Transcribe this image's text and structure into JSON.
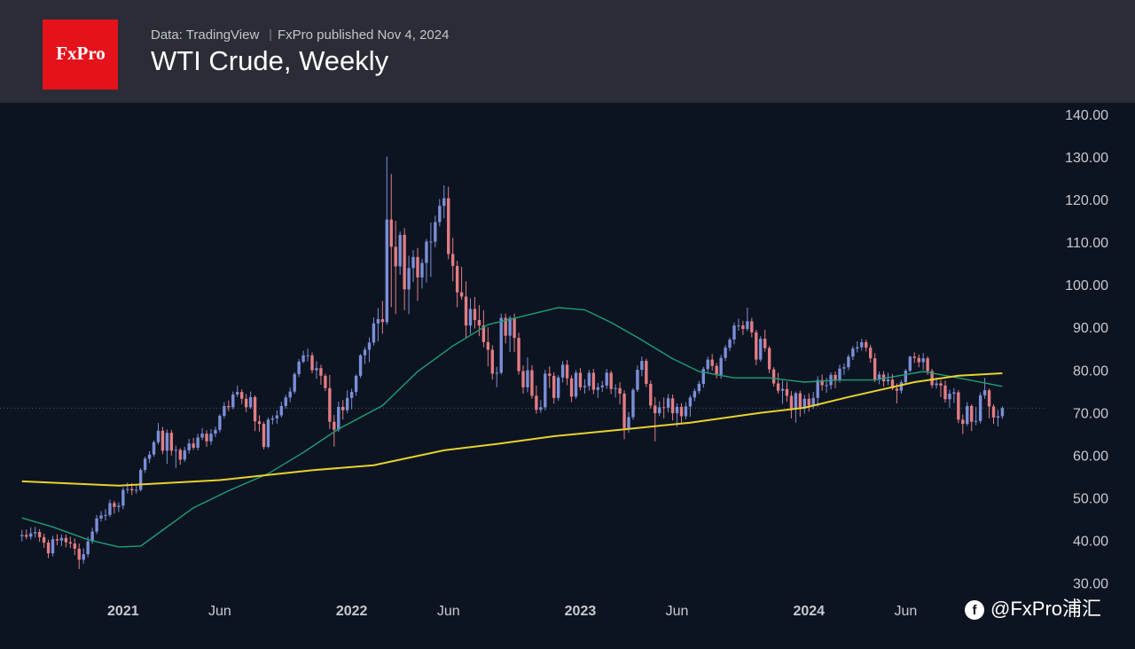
{
  "chart_data": {
    "type": "candlestick",
    "logo": "FxPro",
    "source": "Data: TradingView",
    "published": "FxPro published Nov 4, 2024",
    "title": "WTI Crude, Weekly",
    "watermark": "@FxPro浦汇",
    "up_color": "#7b8fd8",
    "down_color": "#e27d83",
    "price_line": true,
    "xlim": [
      -5,
      233
    ],
    "ylim": [
      26.7,
      143.1
    ],
    "xticks": [
      {
        "value": 23,
        "label": "2021"
      },
      {
        "value": 45,
        "label": "Jun"
      },
      {
        "value": 75,
        "label": "2022"
      },
      {
        "value": 97,
        "label": "Jun"
      },
      {
        "value": 127,
        "label": "2023"
      },
      {
        "value": 149,
        "label": "Jun"
      },
      {
        "value": 179,
        "label": "2024"
      },
      {
        "value": 201,
        "label": "Jun"
      }
    ],
    "yticks": [
      {
        "value": 30,
        "label": "30.00"
      },
      {
        "value": 40,
        "label": "40.00"
      },
      {
        "value": 50,
        "label": "50.00"
      },
      {
        "value": 60,
        "label": "60.00"
      },
      {
        "value": 70,
        "label": "70.00"
      },
      {
        "value": 80,
        "label": "80.00"
      },
      {
        "value": 90,
        "label": "90.00"
      },
      {
        "value": 100,
        "label": "100.00"
      },
      {
        "value": 110,
        "label": "110.00"
      },
      {
        "value": 120,
        "label": "120.00"
      },
      {
        "value": 130,
        "label": "130.00"
      },
      {
        "value": 140,
        "label": "140.00"
      }
    ],
    "open": [
      41.3,
      41.6,
      41.2,
      42.0,
      42.3,
      41.1,
      39.8,
      37.3,
      40.6,
      40.3,
      40.9,
      39.9,
      39.6,
      38.4,
      35.8,
      37.1,
      40.1,
      42.4,
      45.5,
      46.2,
      46.3,
      49.1,
      48.2,
      48.5,
      52.2,
      52.4,
      52.1,
      52.2,
      56.9,
      59.5,
      60.5,
      63.4,
      66.1,
      61.4,
      65.6,
      61.4,
      61.6,
      59.3,
      61.5,
      63.1,
      62.1,
      64.5,
      65.4,
      63.6,
      65.4,
      66.3,
      69.6,
      71.9,
      71.6,
      74.6,
      75.2,
      73.6,
      71.6,
      74.0,
      68.3,
      67.7,
      62.3,
      68.7,
      69.0,
      69.7,
      71.9,
      73.9,
      75.3,
      79.4,
      82.3,
      83.8,
      83.8,
      80.3,
      80.8,
      79.0,
      76.1,
      68.2,
      66.3,
      71.7,
      70.9,
      73.8,
      75.2,
      79.0,
      83.8,
      85.1,
      86.8,
      91.3,
      92.3,
      91.6,
      115.7,
      109.3,
      104.7,
      112.1,
      99.3,
      104.3,
      106.9,
      102.1,
      105.5,
      110.5,
      110.5,
      115.1,
      118.9,
      120.7,
      107.6,
      104.8,
      98.6,
      97.6,
      90.8,
      94.7,
      92.1,
      90.8,
      86.9,
      85.1,
      79.5,
      79.7,
      92.6,
      88.4,
      92.6,
      87.9,
      80.1,
      76.3,
      80.3,
      74.3,
      71.0,
      71.6,
      79.5,
      79.0,
      73.8,
      78.6,
      81.6,
      78.4,
      74.1,
      79.7,
      76.3,
      76.6,
      79.7,
      75.7,
      76.3,
      76.7,
      79.7,
      75.9,
      76.1,
      74.8,
      66.7,
      69.3,
      75.7,
      80.4,
      82.5,
      77.1,
      72.0,
      70.2,
      71.6,
      71.5,
      73.7,
      70.2,
      71.7,
      69.5,
      71.8,
      73.9,
      75.4,
      77.1,
      80.6,
      82.8,
      81.3,
      79.2,
      83.2,
      85.6,
      87.5,
      90.8,
      90.8,
      90.0,
      91.8,
      89.2,
      82.8,
      87.7,
      85.5,
      80.5,
      77.2,
      75.5,
      75.9,
      74.3,
      71.2,
      74.9,
      71.4,
      73.6,
      72.0,
      73.8,
      78.0,
      76.8,
      76.8,
      79.2,
      78.0,
      80.7,
      81.0,
      83.5,
      85.4,
      85.7,
      86.9,
      85.6,
      83.1,
      78.1,
      79.3,
      77.7,
      78.1,
      76.0,
      75.5,
      77.5,
      80.2,
      83.5,
      83.2,
      82.2,
      83.1,
      80.1,
      76.8,
      77.2,
      76.7,
      73.5,
      74.8,
      75.1,
      68.7,
      67.7,
      71.9,
      68.2,
      68.4,
      74.4,
      75.6,
      71.8,
      69.2,
      69.5
    ],
    "high": [
      42.8,
      42.9,
      43.4,
      43.5,
      43.0,
      41.9,
      40.5,
      41.4,
      41.8,
      41.7,
      41.7,
      41.2,
      40.8,
      39.6,
      38.5,
      41.2,
      43.3,
      46.3,
      47.2,
      47.7,
      49.9,
      49.6,
      49.3,
      52.8,
      53.9,
      53.8,
      53.5,
      57.3,
      60.0,
      61.3,
      63.8,
      67.9,
      67.0,
      66.4,
      66.3,
      62.6,
      62.0,
      62.3,
      64.2,
      64.4,
      65.4,
      66.7,
      66.2,
      66.5,
      67.0,
      70.0,
      72.8,
      73.2,
      75.3,
      76.7,
      75.8,
      74.7,
      75.3,
      74.4,
      69.7,
      68.2,
      69.2,
      69.7,
      70.9,
      72.9,
      74.5,
      76.2,
      79.8,
      82.9,
      84.9,
      85.4,
      84.5,
      82.4,
      81.6,
      79.5,
      79.2,
      69.8,
      72.9,
      73.3,
      75.6,
      76.0,
      79.3,
      84.1,
      85.7,
      88.0,
      92.7,
      94.9,
      96.6,
      130.5,
      126.4,
      115.4,
      112.9,
      113.7,
      107.2,
      108.5,
      109.0,
      106.4,
      111.1,
      115.0,
      116.6,
      120.5,
      123.7,
      123.4,
      111.4,
      106.0,
      104.6,
      101.2,
      97.2,
      97.5,
      95.6,
      94.4,
      90.4,
      86.2,
      81.1,
      93.6,
      93.6,
      93.1,
      93.6,
      89.1,
      81.4,
      83.3,
      81.5,
      76.7,
      73.3,
      80.4,
      81.2,
      79.8,
      79.1,
      82.5,
      82.7,
      79.1,
      80.3,
      80.8,
      78.2,
      80.4,
      80.6,
      77.3,
      77.8,
      80.6,
      80.2,
      77.0,
      77.5,
      75.6,
      70.5,
      76.1,
      81.4,
      83.5,
      83.0,
      77.9,
      74.0,
      73.0,
      73.9,
      74.7,
      74.6,
      72.5,
      72.6,
      72.8,
      74.4,
      76.0,
      77.8,
      81.1,
      83.5,
      84.1,
      82.0,
      83.9,
      86.2,
      88.0,
      91.5,
      92.4,
      91.9,
      95.0,
      92.6,
      89.8,
      88.3,
      89.8,
      86.0,
      81.0,
      79.7,
      77.9,
      77.6,
      75.4,
      75.3,
      75.5,
      74.5,
      74.9,
      75.2,
      78.9,
      79.3,
      78.5,
      79.8,
      80.0,
      81.6,
      81.9,
      84.0,
      86.0,
      87.1,
      87.7,
      87.5,
      86.3,
      84.3,
      80.0,
      80.1,
      79.7,
      79.4,
      77.2,
      78.0,
      80.6,
      83.7,
      84.5,
      84.0,
      84.3,
      83.6,
      80.6,
      78.6,
      78.0,
      77.9,
      75.7,
      76.1,
      75.6,
      69.9,
      72.8,
      72.3,
      71.7,
      75.1,
      78.5,
      76.0,
      72.3,
      71.0,
      71.8
    ],
    "low": [
      40.1,
      40.6,
      40.5,
      41.0,
      40.0,
      38.6,
      36.2,
      36.6,
      39.2,
      39.0,
      38.7,
      38.5,
      36.9,
      33.6,
      34.9,
      36.4,
      39.5,
      41.8,
      44.8,
      45.0,
      45.8,
      46.6,
      47.0,
      47.7,
      51.4,
      51.0,
      51.3,
      51.8,
      56.2,
      58.5,
      60.0,
      62.9,
      60.6,
      58.3,
      60.3,
      57.3,
      58.1,
      58.8,
      60.7,
      61.6,
      61.5,
      63.9,
      62.3,
      62.8,
      64.6,
      65.7,
      69.0,
      70.7,
      71.1,
      74.0,
      72.4,
      70.5,
      71.2,
      66.0,
      65.9,
      61.7,
      62.0,
      67.6,
      67.7,
      69.2,
      71.3,
      72.8,
      74.8,
      78.7,
      81.9,
      82.4,
      79.6,
      78.3,
      76.9,
      75.4,
      66.5,
      62.4,
      65.8,
      68.7,
      70.2,
      71.1,
      74.3,
      78.5,
      81.8,
      82.2,
      86.1,
      87.1,
      88.9,
      91.0,
      95.1,
      93.5,
      102.7,
      94.4,
      93.5,
      101.0,
      96.6,
      99.5,
      100.9,
      102.2,
      109.2,
      114.1,
      116.0,
      106.4,
      101.2,
      95.1,
      96.9,
      88.0,
      88.8,
      90.1,
      88.3,
      85.7,
      81.2,
      78.1,
      76.3,
      79.3,
      86.6,
      84.6,
      84.6,
      79.3,
      74.8,
      75.1,
      73.6,
      70.1,
      70.3,
      70.9,
      76.1,
      72.5,
      73.1,
      77.4,
      76.8,
      72.8,
      73.6,
      75.6,
      74.8,
      75.5,
      74.7,
      73.8,
      75.2,
      75.9,
      74.7,
      73.9,
      72.3,
      64.1,
      65.6,
      68.7,
      75.2,
      78.9,
      76.3,
      71.3,
      63.6,
      69.5,
      69.0,
      70.4,
      68.5,
      67.0,
      67.9,
      68.8,
      69.4,
      73.0,
      74.7,
      76.2,
      79.8,
      80.2,
      78.4,
      78.3,
      82.5,
      84.8,
      86.4,
      89.6,
      88.6,
      89.5,
      88.0,
      81.5,
      82.3,
      84.7,
      79.6,
      76.5,
      74.8,
      72.4,
      72.9,
      69.0,
      68.0,
      69.4,
      70.1,
      70.6,
      71.2,
      71.7,
      75.5,
      75.0,
      75.8,
      76.1,
      77.4,
      79.2,
      80.3,
      82.7,
      84.5,
      84.9,
      84.7,
      82.1,
      77.5,
      77.0,
      76.4,
      76.8,
      75.6,
      72.5,
      74.8,
      77.0,
      79.8,
      82.0,
      81.0,
      80.4,
      79.2,
      76.1,
      76.0,
      74.0,
      72.7,
      71.5,
      72.6,
      67.9,
      65.3,
      67.2,
      66.0,
      67.4,
      67.8,
      73.6,
      69.0,
      67.7,
      67.1,
      68.9
    ],
    "close": [
      41.6,
      41.2,
      42.0,
      42.3,
      41.1,
      39.8,
      37.3,
      40.6,
      40.3,
      40.9,
      39.9,
      39.6,
      38.4,
      35.8,
      37.1,
      40.1,
      42.4,
      45.5,
      46.2,
      46.3,
      49.1,
      48.2,
      48.5,
      52.2,
      52.4,
      52.1,
      52.2,
      56.9,
      59.5,
      60.5,
      63.4,
      66.1,
      61.4,
      65.6,
      61.4,
      61.6,
      59.3,
      61.5,
      63.1,
      62.1,
      64.5,
      65.4,
      63.6,
      65.4,
      66.3,
      69.6,
      71.9,
      71.6,
      74.6,
      75.2,
      73.6,
      71.6,
      74.0,
      68.3,
      67.7,
      62.3,
      68.7,
      69.0,
      69.7,
      71.9,
      73.9,
      75.3,
      79.4,
      82.3,
      83.8,
      83.8,
      80.3,
      80.8,
      79.0,
      76.1,
      68.2,
      66.3,
      71.7,
      70.9,
      73.8,
      75.2,
      79.0,
      83.8,
      85.1,
      86.8,
      91.3,
      92.3,
      91.6,
      115.7,
      109.3,
      104.7,
      112.1,
      99.3,
      104.3,
      106.9,
      102.1,
      105.5,
      110.5,
      110.5,
      115.1,
      118.9,
      120.7,
      107.6,
      104.8,
      98.6,
      97.6,
      90.8,
      94.7,
      92.1,
      90.8,
      86.9,
      85.1,
      79.5,
      79.7,
      92.6,
      88.4,
      92.6,
      87.9,
      80.1,
      76.3,
      80.3,
      74.3,
      71.0,
      71.6,
      79.5,
      79.0,
      73.8,
      78.6,
      81.6,
      78.4,
      74.1,
      79.7,
      76.3,
      76.6,
      79.7,
      75.7,
      76.3,
      76.7,
      79.7,
      75.9,
      76.1,
      74.8,
      66.7,
      69.3,
      75.7,
      80.4,
      82.5,
      77.1,
      72.0,
      70.2,
      71.6,
      71.5,
      73.7,
      70.2,
      71.7,
      69.5,
      71.8,
      73.9,
      75.4,
      77.1,
      80.6,
      82.8,
      81.3,
      79.2,
      83.2,
      85.6,
      87.5,
      90.8,
      90.8,
      90.0,
      91.8,
      89.2,
      82.8,
      87.7,
      85.5,
      80.5,
      77.2,
      75.5,
      75.9,
      74.3,
      71.2,
      74.9,
      71.4,
      73.6,
      72.0,
      73.8,
      78.0,
      76.8,
      76.8,
      79.2,
      78.0,
      80.7,
      81.0,
      83.5,
      85.4,
      85.7,
      86.9,
      85.6,
      83.1,
      78.1,
      79.3,
      77.7,
      78.1,
      76.0,
      75.5,
      77.5,
      80.2,
      83.5,
      83.2,
      82.2,
      83.1,
      80.1,
      76.8,
      77.2,
      76.7,
      73.5,
      74.8,
      75.1,
      68.7,
      67.7,
      71.9,
      68.2,
      68.4,
      74.4,
      75.6,
      71.8,
      69.2,
      69.5,
      71.4
    ],
    "lines": [
      {
        "color": "#1f9e76",
        "x": [
          0,
          7,
          15,
          22,
          27,
          31,
          39,
          47,
          56,
          64,
          72,
          82,
          90,
          98,
          106,
          114,
          122,
          128,
          134,
          140,
          148,
          154,
          162,
          170,
          178,
          186,
          194,
          205,
          213,
          223
        ],
        "values": [
          45.6,
          43.5,
          40.5,
          38.8,
          39.0,
          42.0,
          48.0,
          52.0,
          56.0,
          61.0,
          66.5,
          72.0,
          80.0,
          86.0,
          91.0,
          93.0,
          95.0,
          94.5,
          91.5,
          88.0,
          83.0,
          80.0,
          78.5,
          78.5,
          77.5,
          78.0,
          78.0,
          80.0,
          78.5,
          76.5
        ]
      },
      {
        "color": "#e8d22e",
        "x": [
          0,
          22,
          45,
          66,
          80,
          96,
          108,
          121,
          136,
          152,
          168,
          178,
          188,
          203,
          213,
          223
        ],
        "values": [
          54.2,
          53.2,
          54.5,
          56.8,
          58.0,
          61.5,
          63.0,
          64.8,
          66.3,
          68.0,
          70.3,
          71.5,
          74.0,
          77.5,
          79.0,
          79.6
        ]
      }
    ]
  }
}
